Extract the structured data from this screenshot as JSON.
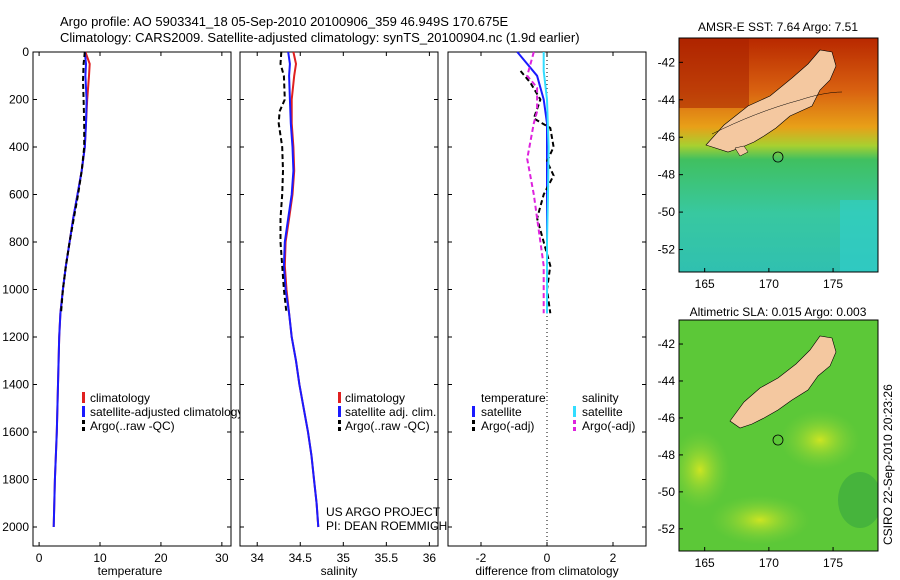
{
  "title_line1": "Argo profile: AO 5903341_18 05-Sep-2010 20100906_359 46.949S 170.675E",
  "title_line2": "Climatology: CARS2009. Satellite-adjusted climatology: synTS_20100904.nc (1.9d earlier)",
  "timestamp": "CSIRO 22-Sep-2010 20:23:26",
  "colors": {
    "climatology": "#e02020",
    "satellite": "#1a1aff",
    "argo": "#000000",
    "sal_satellite": "#33ddff",
    "sal_argo": "#dd22dd"
  },
  "chart_data": [
    {
      "type": "line",
      "id": "temperature",
      "xlabel": "temperature",
      "ylabel": "",
      "xlim": [
        -1,
        31.5
      ],
      "ylim": [
        0,
        2080
      ],
      "y_inverted": true,
      "xticks": [
        0,
        10,
        20,
        30
      ],
      "xtick_labels": [
        "0",
        "10",
        "20",
        "30"
      ],
      "yticks": [
        0,
        200,
        400,
        600,
        800,
        1000,
        1200,
        1400,
        1600,
        1800,
        2000
      ],
      "ytick_labels": [
        "0",
        "200",
        "400",
        "600",
        "800",
        "1000",
        "1200",
        "1400",
        "1600",
        "1800",
        "2000"
      ],
      "legend": [
        "climatology",
        "satellite-adjusted climatology",
        "Argo(..raw -QC)"
      ],
      "series": [
        {
          "name": "climatology",
          "color": "#e02020",
          "dash": "",
          "points": [
            [
              7.6,
              0
            ],
            [
              8.3,
              50
            ],
            [
              8.2,
              100
            ],
            [
              7.9,
              200
            ],
            [
              7.7,
              300
            ],
            [
              7.5,
              400
            ],
            [
              7.0,
              500
            ],
            [
              6.3,
              600
            ],
            [
              5.6,
              700
            ],
            [
              5.0,
              800
            ],
            [
              4.4,
              900
            ],
            [
              3.9,
              1000
            ],
            [
              3.5,
              1100
            ],
            [
              3.3,
              1200
            ],
            [
              3.1,
              1400
            ],
            [
              2.9,
              1600
            ],
            [
              2.6,
              1800
            ],
            [
              2.4,
              2000
            ]
          ]
        },
        {
          "name": "satellite-adjusted climatology",
          "color": "#1a1aff",
          "dash": "",
          "points": [
            [
              7.5,
              0
            ],
            [
              7.7,
              50
            ],
            [
              7.6,
              100
            ],
            [
              7.8,
              200
            ],
            [
              7.7,
              300
            ],
            [
              7.5,
              400
            ],
            [
              7.0,
              500
            ],
            [
              6.3,
              600
            ],
            [
              5.6,
              700
            ],
            [
              5.0,
              800
            ],
            [
              4.4,
              900
            ],
            [
              3.9,
              1000
            ],
            [
              3.5,
              1100
            ],
            [
              3.3,
              1200
            ],
            [
              3.1,
              1400
            ],
            [
              2.9,
              1600
            ],
            [
              2.6,
              1800
            ],
            [
              2.4,
              2000
            ]
          ]
        },
        {
          "name": "Argo(..raw -QC)",
          "color": "#000000",
          "dash": "5,3",
          "points": [
            [
              7.5,
              0
            ],
            [
              7.3,
              50
            ],
            [
              7.2,
              120
            ],
            [
              7.3,
              200
            ],
            [
              7.4,
              300
            ],
            [
              7.4,
              400
            ],
            [
              7.0,
              500
            ],
            [
              6.4,
              600
            ],
            [
              5.7,
              700
            ],
            [
              5.0,
              800
            ],
            [
              4.4,
              900
            ],
            [
              3.9,
              1000
            ],
            [
              3.6,
              1100
            ]
          ]
        }
      ]
    },
    {
      "type": "line",
      "id": "salinity",
      "xlabel": "salinity",
      "ylabel": "",
      "xlim": [
        33.8,
        36.1
      ],
      "ylim": [
        0,
        2080
      ],
      "y_inverted": true,
      "xticks": [
        34,
        34.5,
        35,
        35.5,
        36
      ],
      "xtick_labels": [
        "34",
        "34.5",
        "35",
        "35.5",
        "36"
      ],
      "legend": [
        "climatology",
        "satellite adj. clim.",
        "Argo(..raw -QC)"
      ],
      "annotation": [
        "US ARGO PROJECT",
        "PI: DEAN ROEMMICH"
      ],
      "series": [
        {
          "name": "climatology",
          "color": "#e02020",
          "dash": "",
          "points": [
            [
              34.42,
              0
            ],
            [
              34.45,
              50
            ],
            [
              34.43,
              100
            ],
            [
              34.4,
              200
            ],
            [
              34.4,
              300
            ],
            [
              34.42,
              400
            ],
            [
              34.43,
              500
            ],
            [
              34.41,
              600
            ],
            [
              34.37,
              700
            ],
            [
              34.33,
              800
            ],
            [
              34.32,
              900
            ],
            [
              34.34,
              1000
            ],
            [
              34.37,
              1100
            ],
            [
              34.4,
              1200
            ],
            [
              34.45,
              1300
            ],
            [
              34.49,
              1400
            ],
            [
              34.54,
              1500
            ],
            [
              34.59,
              1600
            ],
            [
              34.63,
              1700
            ],
            [
              34.66,
              1800
            ],
            [
              34.69,
              1900
            ],
            [
              34.71,
              2000
            ]
          ]
        },
        {
          "name": "satellite adj. clim.",
          "color": "#1a1aff",
          "dash": "",
          "points": [
            [
              34.36,
              0
            ],
            [
              34.38,
              50
            ],
            [
              34.37,
              100
            ],
            [
              34.38,
              200
            ],
            [
              34.39,
              300
            ],
            [
              34.41,
              400
            ],
            [
              34.42,
              500
            ],
            [
              34.4,
              600
            ],
            [
              34.36,
              700
            ],
            [
              34.32,
              800
            ],
            [
              34.31,
              900
            ],
            [
              34.33,
              1000
            ],
            [
              34.37,
              1100
            ],
            [
              34.4,
              1200
            ],
            [
              34.45,
              1300
            ],
            [
              34.49,
              1400
            ],
            [
              34.54,
              1500
            ],
            [
              34.59,
              1600
            ],
            [
              34.63,
              1700
            ],
            [
              34.66,
              1800
            ],
            [
              34.69,
              1900
            ],
            [
              34.71,
              2000
            ]
          ]
        },
        {
          "name": "Argo(..raw -QC)",
          "color": "#000000",
          "dash": "5,3",
          "points": [
            [
              34.28,
              0
            ],
            [
              34.27,
              50
            ],
            [
              34.31,
              100
            ],
            [
              34.32,
              200
            ],
            [
              34.26,
              250
            ],
            [
              34.25,
              300
            ],
            [
              34.29,
              400
            ],
            [
              34.3,
              500
            ],
            [
              34.29,
              600
            ],
            [
              34.27,
              700
            ],
            [
              34.27,
              800
            ],
            [
              34.29,
              900
            ],
            [
              34.31,
              1000
            ],
            [
              34.34,
              1100
            ]
          ]
        }
      ]
    },
    {
      "type": "line",
      "id": "difference",
      "xlabel": "difference from climatology",
      "ylabel": "",
      "xlim": [
        -3,
        3
      ],
      "ylim": [
        0,
        2080
      ],
      "y_inverted": true,
      "xticks": [
        -2,
        0,
        2
      ],
      "xtick_labels": [
        "-2",
        "0",
        "2"
      ],
      "legend_headers": [
        "temperature",
        "salinity"
      ],
      "legend": [
        "satellite",
        "Argo(-adj)",
        "satellite",
        "Argo(-adj)"
      ],
      "series": [
        {
          "name": "temperature satellite",
          "color": "#1a1aff",
          "dash": "",
          "points": [
            [
              -0.9,
              0
            ],
            [
              -0.6,
              50
            ],
            [
              -0.3,
              100
            ],
            [
              -0.1,
              200
            ],
            [
              0,
              300
            ],
            [
              0,
              500
            ],
            [
              0,
              1000
            ],
            [
              0,
              1100
            ]
          ]
        },
        {
          "name": "temperature Argo(-adj)",
          "color": "#000000",
          "dash": "5,3",
          "points": [
            [
              -0.8,
              80
            ],
            [
              -0.5,
              130
            ],
            [
              -0.2,
              200
            ],
            [
              -0.4,
              280
            ],
            [
              0.1,
              320
            ],
            [
              0.2,
              400
            ],
            [
              0,
              460
            ],
            [
              0.2,
              520
            ],
            [
              -0.1,
              600
            ],
            [
              -0.3,
              700
            ],
            [
              -0.1,
              800
            ],
            [
              0.1,
              900
            ],
            [
              0,
              1000
            ],
            [
              0.1,
              1100
            ]
          ]
        },
        {
          "name": "salinity satellite",
          "color": "#33ddff",
          "dash": "",
          "points": [
            [
              -0.1,
              0
            ],
            [
              -0.1,
              80
            ],
            [
              0,
              200
            ],
            [
              0.05,
              400
            ],
            [
              0.03,
              600
            ],
            [
              0,
              800
            ],
            [
              0,
              1000
            ],
            [
              0,
              1100
            ]
          ]
        },
        {
          "name": "salinity Argo(-adj)",
          "color": "#dd22dd",
          "dash": "5,3",
          "points": [
            [
              -0.4,
              0
            ],
            [
              -0.6,
              100
            ],
            [
              -0.3,
              150
            ],
            [
              -0.3,
              250
            ],
            [
              -0.4,
              300
            ],
            [
              -0.6,
              450
            ],
            [
              -0.4,
              600
            ],
            [
              -0.3,
              700
            ],
            [
              -0.2,
              800
            ],
            [
              -0.1,
              900
            ],
            [
              -0.1,
              1000
            ],
            [
              -0.1,
              1100
            ]
          ]
        }
      ]
    },
    {
      "type": "heatmap",
      "id": "sst_map",
      "title": "AMSR-E SST: 7.64 Argo: 7.51",
      "xlim": [
        163,
        178.5
      ],
      "ylim": [
        -53.2,
        -40.7
      ],
      "xticks": [
        165,
        170,
        175
      ],
      "xtick_labels": [
        "165",
        "170",
        "175"
      ],
      "yticks": [
        -42,
        -44,
        -46,
        -48,
        -50,
        -52
      ],
      "ytick_labels": [
        "-42",
        "-44",
        "-46",
        "-48",
        "-50",
        "-52"
      ],
      "float_position": [
        170.675,
        -46.949
      ]
    },
    {
      "type": "heatmap",
      "id": "sla_map",
      "title": "Altimetric SLA: 0.015 Argo: 0.003",
      "xlim": [
        163,
        178.5
      ],
      "ylim": [
        -53.2,
        -40.7
      ],
      "xticks": [
        165,
        170,
        175
      ],
      "xtick_labels": [
        "165",
        "170",
        "175"
      ],
      "yticks": [
        -42,
        -44,
        -46,
        -48,
        -50,
        -52
      ],
      "ytick_labels": [
        "-42",
        "-44",
        "-46",
        "-48",
        "-50",
        "-52"
      ],
      "float_position": [
        170.675,
        -46.949
      ]
    }
  ]
}
